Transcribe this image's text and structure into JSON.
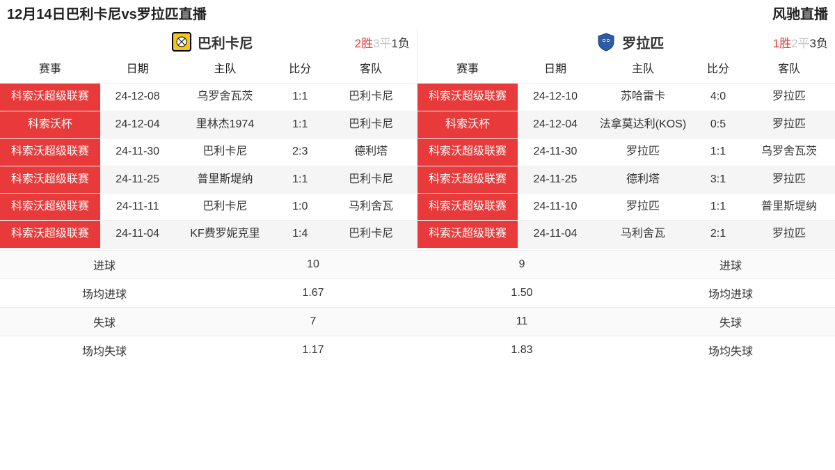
{
  "header": {
    "title": "12月14日巴利卡尼vs罗拉匹直播",
    "site": "风驰直播"
  },
  "colors": {
    "accent_red": "#e83a3a",
    "muted": "#c7c7c7"
  },
  "columns": {
    "comp": "赛事",
    "date": "日期",
    "home": "主队",
    "score": "比分",
    "away": "客队"
  },
  "left": {
    "team": "巴利卡尼",
    "logo_bg": "#f5c518",
    "logo_border": "#000000",
    "record": {
      "win_n": "2",
      "win_t": "胜",
      "draw_n": "3",
      "draw_t": "平",
      "loss_n": "1",
      "loss_t": "负"
    },
    "rows": [
      {
        "comp": "科索沃超级联赛",
        "date": "24-12-08",
        "home": "乌罗舍瓦茨",
        "score": "1:1",
        "away": "巴利卡尼"
      },
      {
        "comp": "科索沃杯",
        "date": "24-12-04",
        "home": "里林杰1974",
        "score": "1:1",
        "away": "巴利卡尼"
      },
      {
        "comp": "科索沃超级联赛",
        "date": "24-11-30",
        "home": "巴利卡尼",
        "score": "2:3",
        "away": "德利塔"
      },
      {
        "comp": "科索沃超级联赛",
        "date": "24-11-25",
        "home": "普里斯堤纳",
        "score": "1:1",
        "away": "巴利卡尼"
      },
      {
        "comp": "科索沃超级联赛",
        "date": "24-11-11",
        "home": "巴利卡尼",
        "score": "1:0",
        "away": "马利舍瓦"
      },
      {
        "comp": "科索沃超级联赛",
        "date": "24-11-04",
        "home": "KF费罗妮克里",
        "score": "1:4",
        "away": "巴利卡尼"
      }
    ]
  },
  "right": {
    "team": "罗拉匹",
    "logo_bg": "#2a5caa",
    "record": {
      "win_n": "1",
      "win_t": "胜",
      "draw_n": "2",
      "draw_t": "平",
      "loss_n": "3",
      "loss_t": "负"
    },
    "rows": [
      {
        "comp": "科索沃超级联赛",
        "date": "24-12-10",
        "home": "苏哈雷卡",
        "score": "4:0",
        "away": "罗拉匹"
      },
      {
        "comp": "科索沃杯",
        "date": "24-12-04",
        "home": "法拿莫达利(KOS)",
        "score": "0:5",
        "away": "罗拉匹"
      },
      {
        "comp": "科索沃超级联赛",
        "date": "24-11-30",
        "home": "罗拉匹",
        "score": "1:1",
        "away": "乌罗舍瓦茨"
      },
      {
        "comp": "科索沃超级联赛",
        "date": "24-11-25",
        "home": "德利塔",
        "score": "3:1",
        "away": "罗拉匹"
      },
      {
        "comp": "科索沃超级联赛",
        "date": "24-11-10",
        "home": "罗拉匹",
        "score": "1:1",
        "away": "普里斯堤纳"
      },
      {
        "comp": "科索沃超级联赛",
        "date": "24-11-04",
        "home": "马利舍瓦",
        "score": "2:1",
        "away": "罗拉匹"
      }
    ]
  },
  "stats": {
    "labels": {
      "goals": "进球",
      "avg_goals": "场均进球",
      "conc": "失球",
      "avg_conc": "场均失球"
    },
    "left": {
      "goals": "10",
      "avg_goals": "1.67",
      "conc": "7",
      "avg_conc": "1.17"
    },
    "right": {
      "goals": "9",
      "avg_goals": "1.50",
      "conc": "11",
      "avg_conc": "1.83"
    }
  }
}
